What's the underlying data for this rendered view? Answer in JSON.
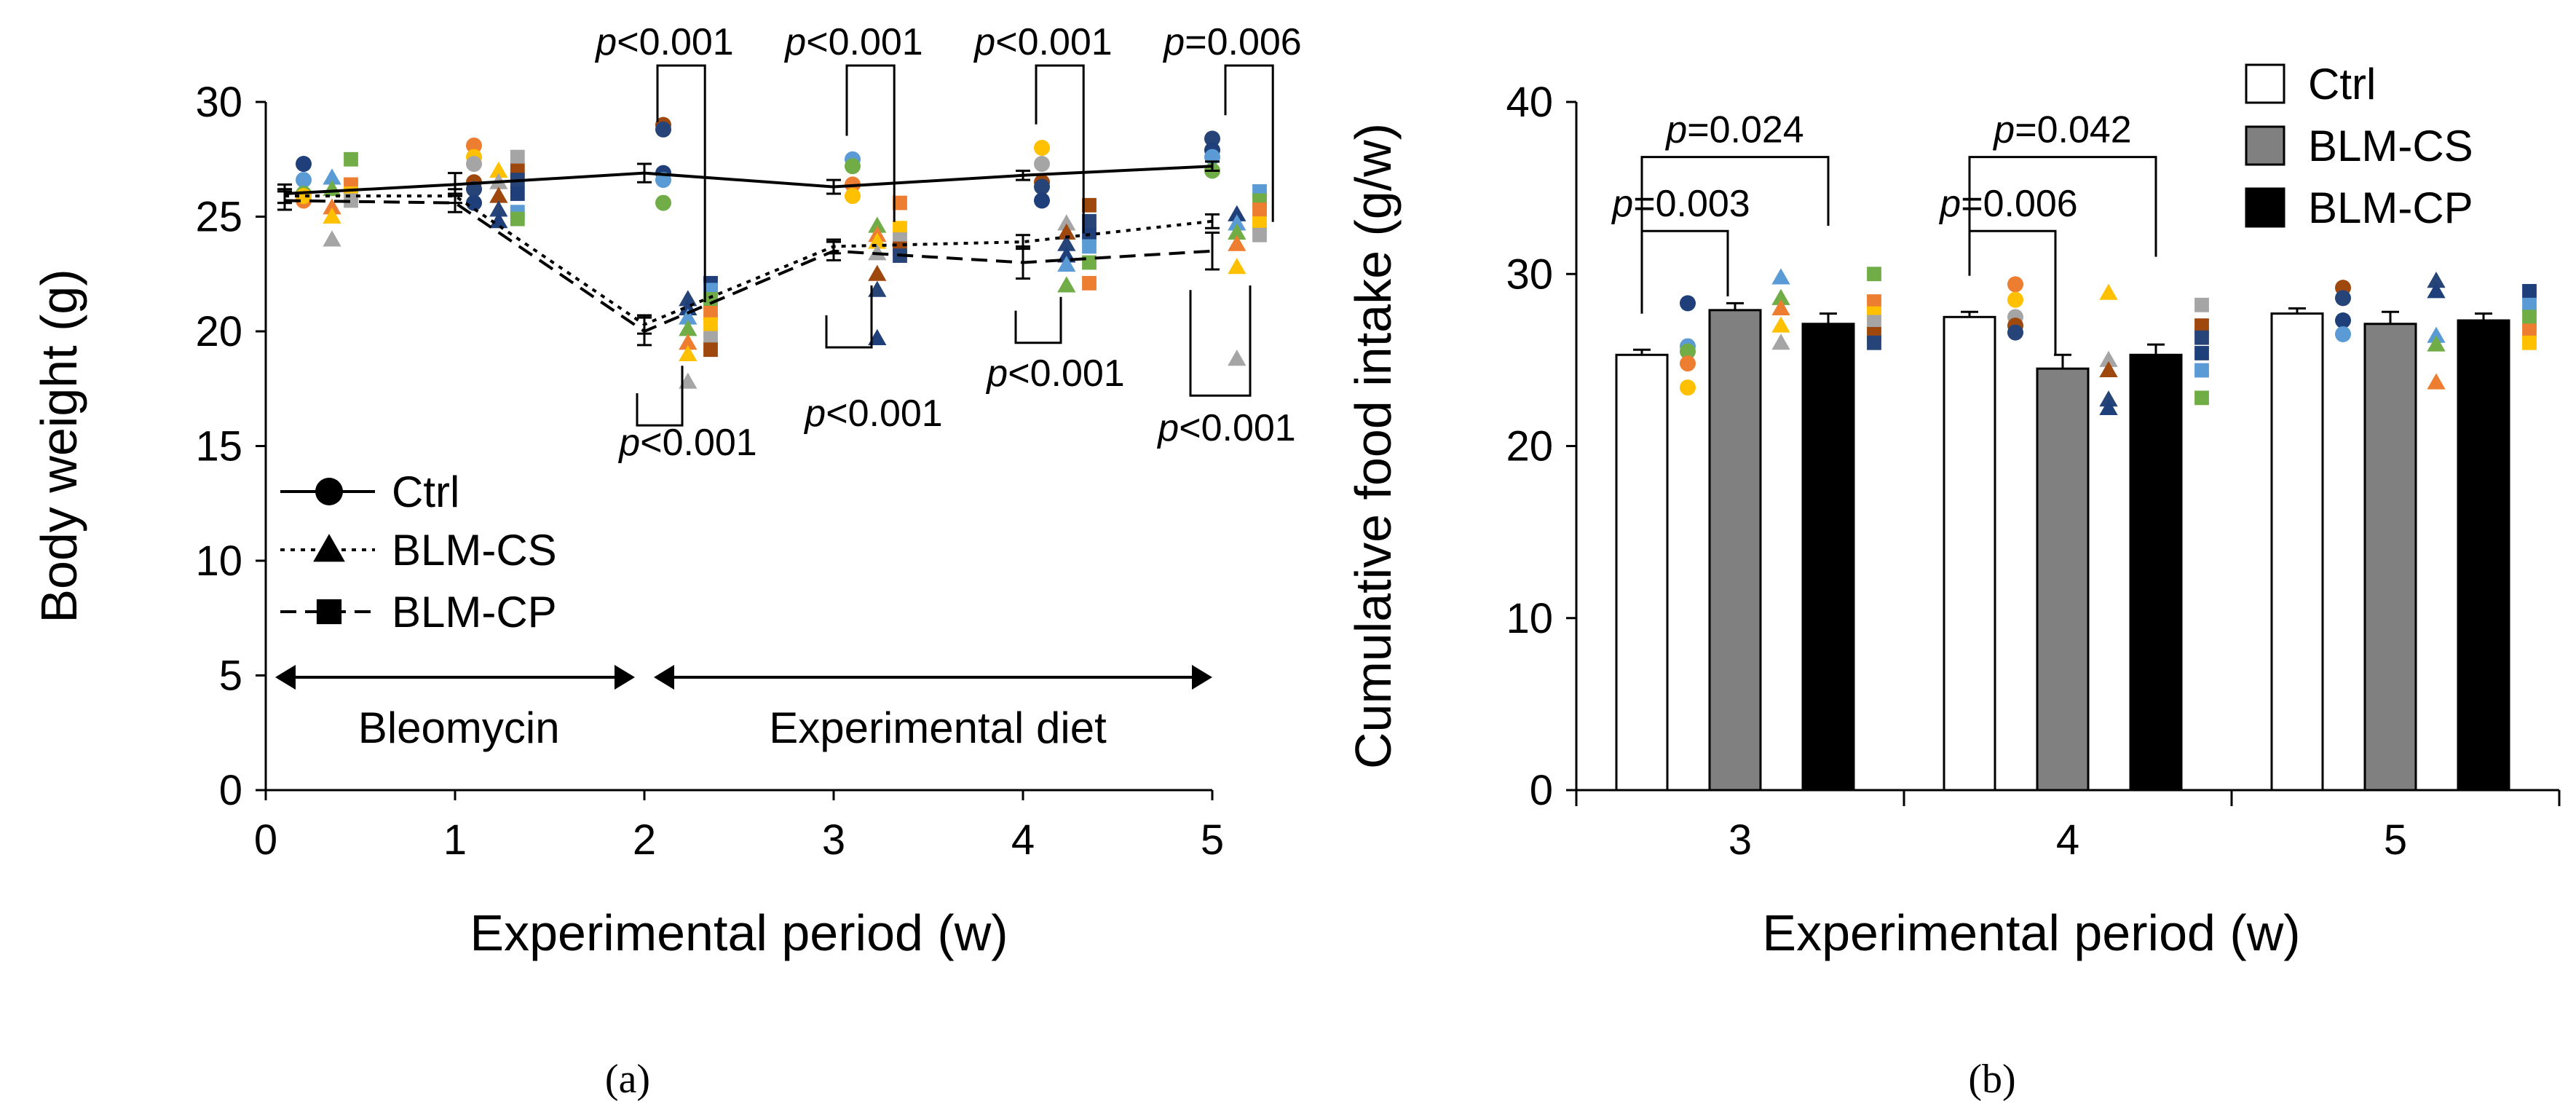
{
  "chart_data": [
    {
      "panel_label": "(a)",
      "type": "line",
      "xlabel": "Experimental period (w)",
      "ylabel": "Body weight (g)",
      "xlim": [
        0,
        5
      ],
      "ylim": [
        0,
        30
      ],
      "xticks": [
        "0",
        "1",
        "2",
        "3",
        "4",
        "5"
      ],
      "yticks": [
        "0",
        "5",
        "10",
        "15",
        "20",
        "25",
        "30"
      ],
      "x": [
        0.1,
        1,
        2,
        3,
        4,
        5
      ],
      "legend_position": "lower-left",
      "series": [
        {
          "name": "Ctrl",
          "marker": "circle",
          "line": "solid",
          "values": [
            26.0,
            26.4,
            26.9,
            26.3,
            26.8,
            27.2
          ],
          "errors": [
            0.4,
            0.5,
            0.4,
            0.3,
            0.2,
            0.2
          ]
        },
        {
          "name": "BLM-CS",
          "marker": "triangle",
          "line": "dotted",
          "values": [
            25.9,
            25.9,
            20.3,
            23.7,
            23.9,
            24.8
          ],
          "errors": [
            0.3,
            0.3,
            0.4,
            0.3,
            0.3,
            0.3
          ]
        },
        {
          "name": "BLM-CP",
          "marker": "square",
          "line": "dashed",
          "values": [
            25.7,
            25.6,
            20.0,
            23.5,
            23.0,
            23.5
          ],
          "errors": [
            0.4,
            0.4,
            0.6,
            0.4,
            0.7,
            0.8
          ]
        }
      ],
      "significance": [
        {
          "top": "p<0.001",
          "bottom": "p<0.001"
        },
        {
          "top": "p<0.001",
          "bottom": "p<0.001"
        },
        {
          "top": "p<0.001",
          "bottom": "p<0.001"
        },
        {
          "top": "p=0.006",
          "bottom": "p<0.001"
        }
      ],
      "annotations": {
        "phase1": "Bleomycin",
        "phase2": "Experimental diet"
      },
      "individual_points": [
        {
          "x": 0.2,
          "y": [
            27.3,
            26.6,
            26.0,
            25.7,
            25.9
          ]
        },
        {
          "x": 0.35,
          "y": [
            26.7,
            26.2,
            25.4,
            25.0,
            24.0
          ]
        },
        {
          "x": 0.45,
          "y": [
            27.5,
            26.4,
            26.0,
            25.7
          ]
        },
        {
          "x": 1.1,
          "y": [
            28.1,
            27.6,
            27.3,
            26.5,
            26.2,
            25.6
          ]
        },
        {
          "x": 1.23,
          "y": [
            27.0,
            26.5,
            25.9,
            25.3,
            24.8
          ]
        },
        {
          "x": 1.33,
          "y": [
            27.6,
            27.0,
            26.6,
            26.0,
            25.2,
            24.9
          ]
        },
        {
          "x": 2.1,
          "y": [
            29.0,
            28.8,
            26.9,
            26.6,
            25.6
          ]
        },
        {
          "x": 2.23,
          "y": [
            21.4,
            21.0,
            20.6,
            20.1,
            19.5,
            19.0,
            17.8
          ]
        },
        {
          "x": 2.35,
          "y": [
            22.1,
            21.8,
            21.4,
            20.8,
            20.3,
            19.7,
            19.2
          ]
        },
        {
          "x": 3.1,
          "y": [
            27.5,
            27.2,
            26.4,
            25.9
          ]
        },
        {
          "x": 3.23,
          "y": [
            24.6,
            24.2,
            23.9,
            23.4,
            22.5,
            21.8,
            19.7
          ]
        },
        {
          "x": 3.35,
          "y": [
            25.6,
            24.5,
            24.0,
            23.6,
            23.3
          ]
        },
        {
          "x": 4.1,
          "y": [
            28.0,
            27.3,
            26.5,
            26.3,
            25.7
          ]
        },
        {
          "x": 4.23,
          "y": [
            24.7,
            24.3,
            23.8,
            23.3,
            22.9,
            22.0
          ]
        },
        {
          "x": 4.35,
          "y": [
            25.5,
            24.8,
            24.2,
            23.7,
            23.0,
            22.1
          ]
        },
        {
          "x": 5.0,
          "y": [
            28.4,
            27.9,
            27.6,
            27.0
          ]
        },
        {
          "x": 5.13,
          "y": [
            25.1,
            24.7,
            24.3,
            23.8,
            22.8,
            18.8
          ]
        },
        {
          "x": 5.25,
          "y": [
            26.1,
            25.7,
            25.3,
            24.7,
            24.2
          ]
        }
      ]
    },
    {
      "panel_label": "(b)",
      "type": "bar",
      "xlabel": "Experimental period (w)",
      "ylabel": "Cumulative food intake (g/w)",
      "ylim": [
        0,
        40
      ],
      "yticks": [
        "0",
        "10",
        "20",
        "30",
        "40"
      ],
      "categories": [
        "3",
        "4",
        "5"
      ],
      "legend_position": "top-right",
      "series": [
        {
          "name": "Ctrl",
          "fill": "#ffffff",
          "values": [
            25.3,
            27.5,
            27.7
          ],
          "errors": [
            0.3,
            0.3,
            0.3
          ]
        },
        {
          "name": "BLM-CS",
          "fill": "#808080",
          "values": [
            27.9,
            24.5,
            27.1
          ],
          "errors": [
            0.4,
            0.8,
            0.7
          ]
        },
        {
          "name": "BLM-CP",
          "fill": "#000000",
          "values": [
            27.1,
            25.3,
            27.3
          ],
          "errors": [
            0.6,
            0.6,
            0.4
          ]
        }
      ],
      "significance": [
        {
          "label": "p=0.024",
          "category": "3",
          "from": "Ctrl",
          "to": "BLM-CP"
        },
        {
          "label": "p=0.003",
          "category": "3",
          "from": "Ctrl",
          "to": "BLM-CS"
        },
        {
          "label": "p=0.042",
          "category": "4",
          "from": "Ctrl",
          "to": "BLM-CP"
        },
        {
          "label": "p=0.006",
          "category": "4",
          "from": "Ctrl",
          "to": "BLM-CS"
        }
      ],
      "individual_points": [
        {
          "cat": 0,
          "series": 0,
          "y": [
            28.3,
            25.8,
            25.5,
            24.8,
            23.4
          ]
        },
        {
          "cat": 0,
          "series": 1,
          "y": [
            29.8,
            28.6,
            28.0,
            27.0,
            26.0
          ]
        },
        {
          "cat": 0,
          "series": 2,
          "y": [
            30.0,
            28.4,
            27.7,
            27.2,
            26.5,
            26.0
          ]
        },
        {
          "cat": 1,
          "series": 0,
          "y": [
            29.4,
            28.5,
            27.5,
            27.0,
            26.6
          ]
        },
        {
          "cat": 1,
          "series": 1,
          "y": [
            28.9,
            25.0,
            24.4,
            22.7,
            22.2
          ]
        },
        {
          "cat": 1,
          "series": 2,
          "y": [
            28.2,
            27.0,
            26.3,
            25.4,
            24.4,
            22.8
          ]
        },
        {
          "cat": 2,
          "series": 0,
          "y": [
            29.2,
            28.6,
            27.3,
            26.5
          ]
        },
        {
          "cat": 2,
          "series": 1,
          "y": [
            29.6,
            29.0,
            26.4,
            25.9,
            23.7
          ]
        },
        {
          "cat": 2,
          "series": 2,
          "y": [
            29.0,
            28.2,
            27.5,
            26.7,
            26.0
          ]
        }
      ]
    }
  ],
  "point_colors": [
    "#1f3f7a",
    "#5b9bd5",
    "#70ad47",
    "#ed7d31",
    "#ffc000",
    "#a5a5a5",
    "#9e480e",
    "#264478"
  ]
}
